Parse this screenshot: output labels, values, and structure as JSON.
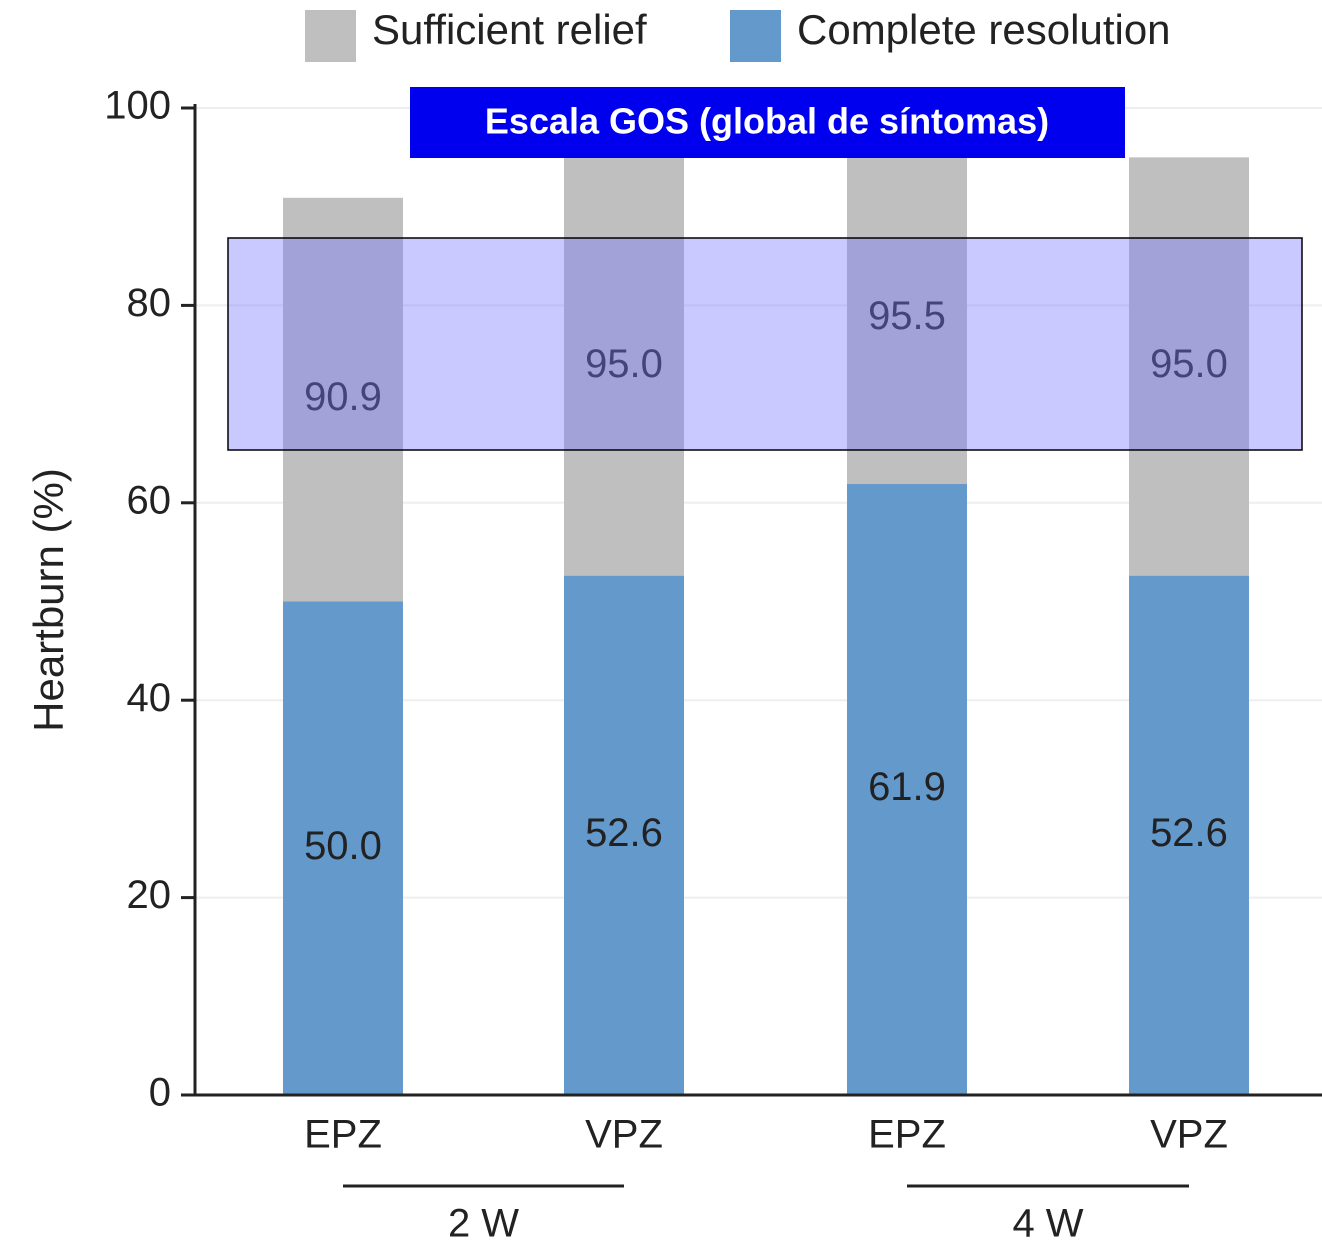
{
  "chart_data": {
    "type": "bar",
    "categories": [
      "EPZ",
      "VPZ",
      "EPZ",
      "VPZ"
    ],
    "groups": [
      "2 W",
      "4 W"
    ],
    "series": [
      {
        "name": "Sufficient relief",
        "color": "#bfbfbf",
        "values": [
          90.9,
          95.0,
          95.5,
          95.0
        ],
        "value_labels": [
          "90.9",
          "95.0",
          "95.5",
          "95.0"
        ]
      },
      {
        "name": "Complete resolution",
        "color": "#6499cc",
        "values": [
          50.0,
          52.6,
          61.9,
          52.6
        ],
        "value_labels": [
          "50.0",
          "52.6",
          "61.9",
          "52.6"
        ]
      }
    ],
    "ylabel": "Heartburn (%)",
    "annotation": "Escala GOS (global de síntomas)",
    "ylim": [
      0,
      100
    ],
    "yticks": [
      0,
      20,
      40,
      60,
      80,
      100
    ],
    "grid": true,
    "legend": "top"
  }
}
